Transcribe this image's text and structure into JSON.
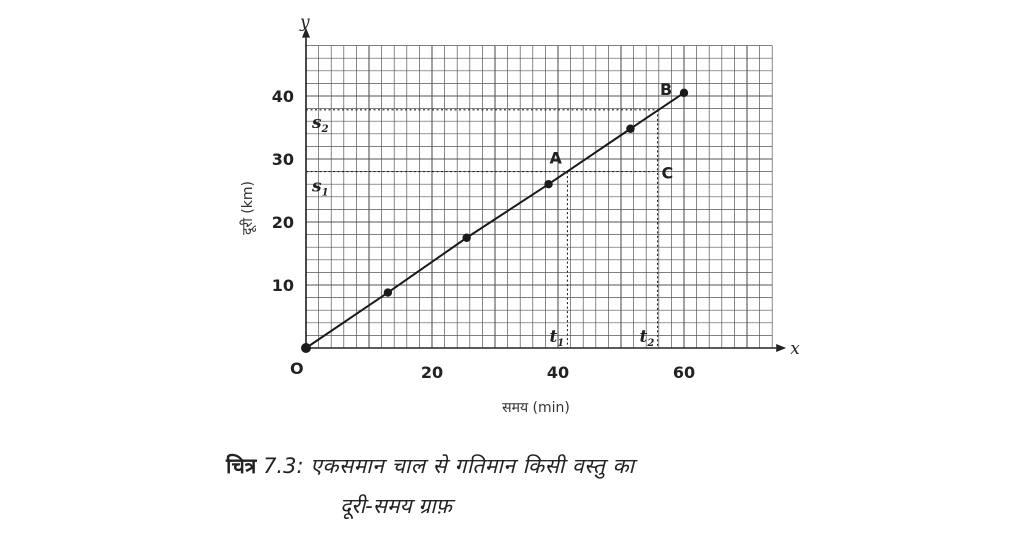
{
  "chart_data": {
    "type": "line",
    "x": [
      0,
      13,
      25.5,
      38.5,
      51.5,
      60
    ],
    "y": [
      0,
      8.8,
      17.5,
      26,
      34.8,
      40.5
    ],
    "xlim": [
      0,
      74
    ],
    "ylim": [
      0,
      48
    ],
    "x_ticks": [
      20,
      40,
      60
    ],
    "y_ticks": [
      10,
      20,
      30,
      40
    ],
    "x_axis_name": "x",
    "y_axis_name": "y",
    "origin_label": "O",
    "xlabel": "समय (min)",
    "ylabel": "दूरी (km)",
    "grid": true,
    "annotations": {
      "A": {
        "label": "A",
        "x": 41.5,
        "y": 28
      },
      "B": {
        "label": "B",
        "x": 60,
        "y": 40.5
      },
      "C": {
        "label": "C",
        "x": 55.8,
        "y": 28
      },
      "s1": {
        "label": "s",
        "sub": "1",
        "y": 28
      },
      "s2": {
        "label": "s",
        "sub": "2",
        "y": 37.8
      },
      "t1": {
        "label": "t",
        "sub": "1",
        "x": 41.5
      },
      "t2": {
        "label": "t",
        "sub": "2",
        "x": 55.8
      }
    }
  },
  "caption": {
    "prefix": "चित्र",
    "number": "7.3:",
    "line1": "एकसमान चाल से गतिमान किसी वस्तु का",
    "line2": "दूरी-समय ग्राफ़"
  }
}
